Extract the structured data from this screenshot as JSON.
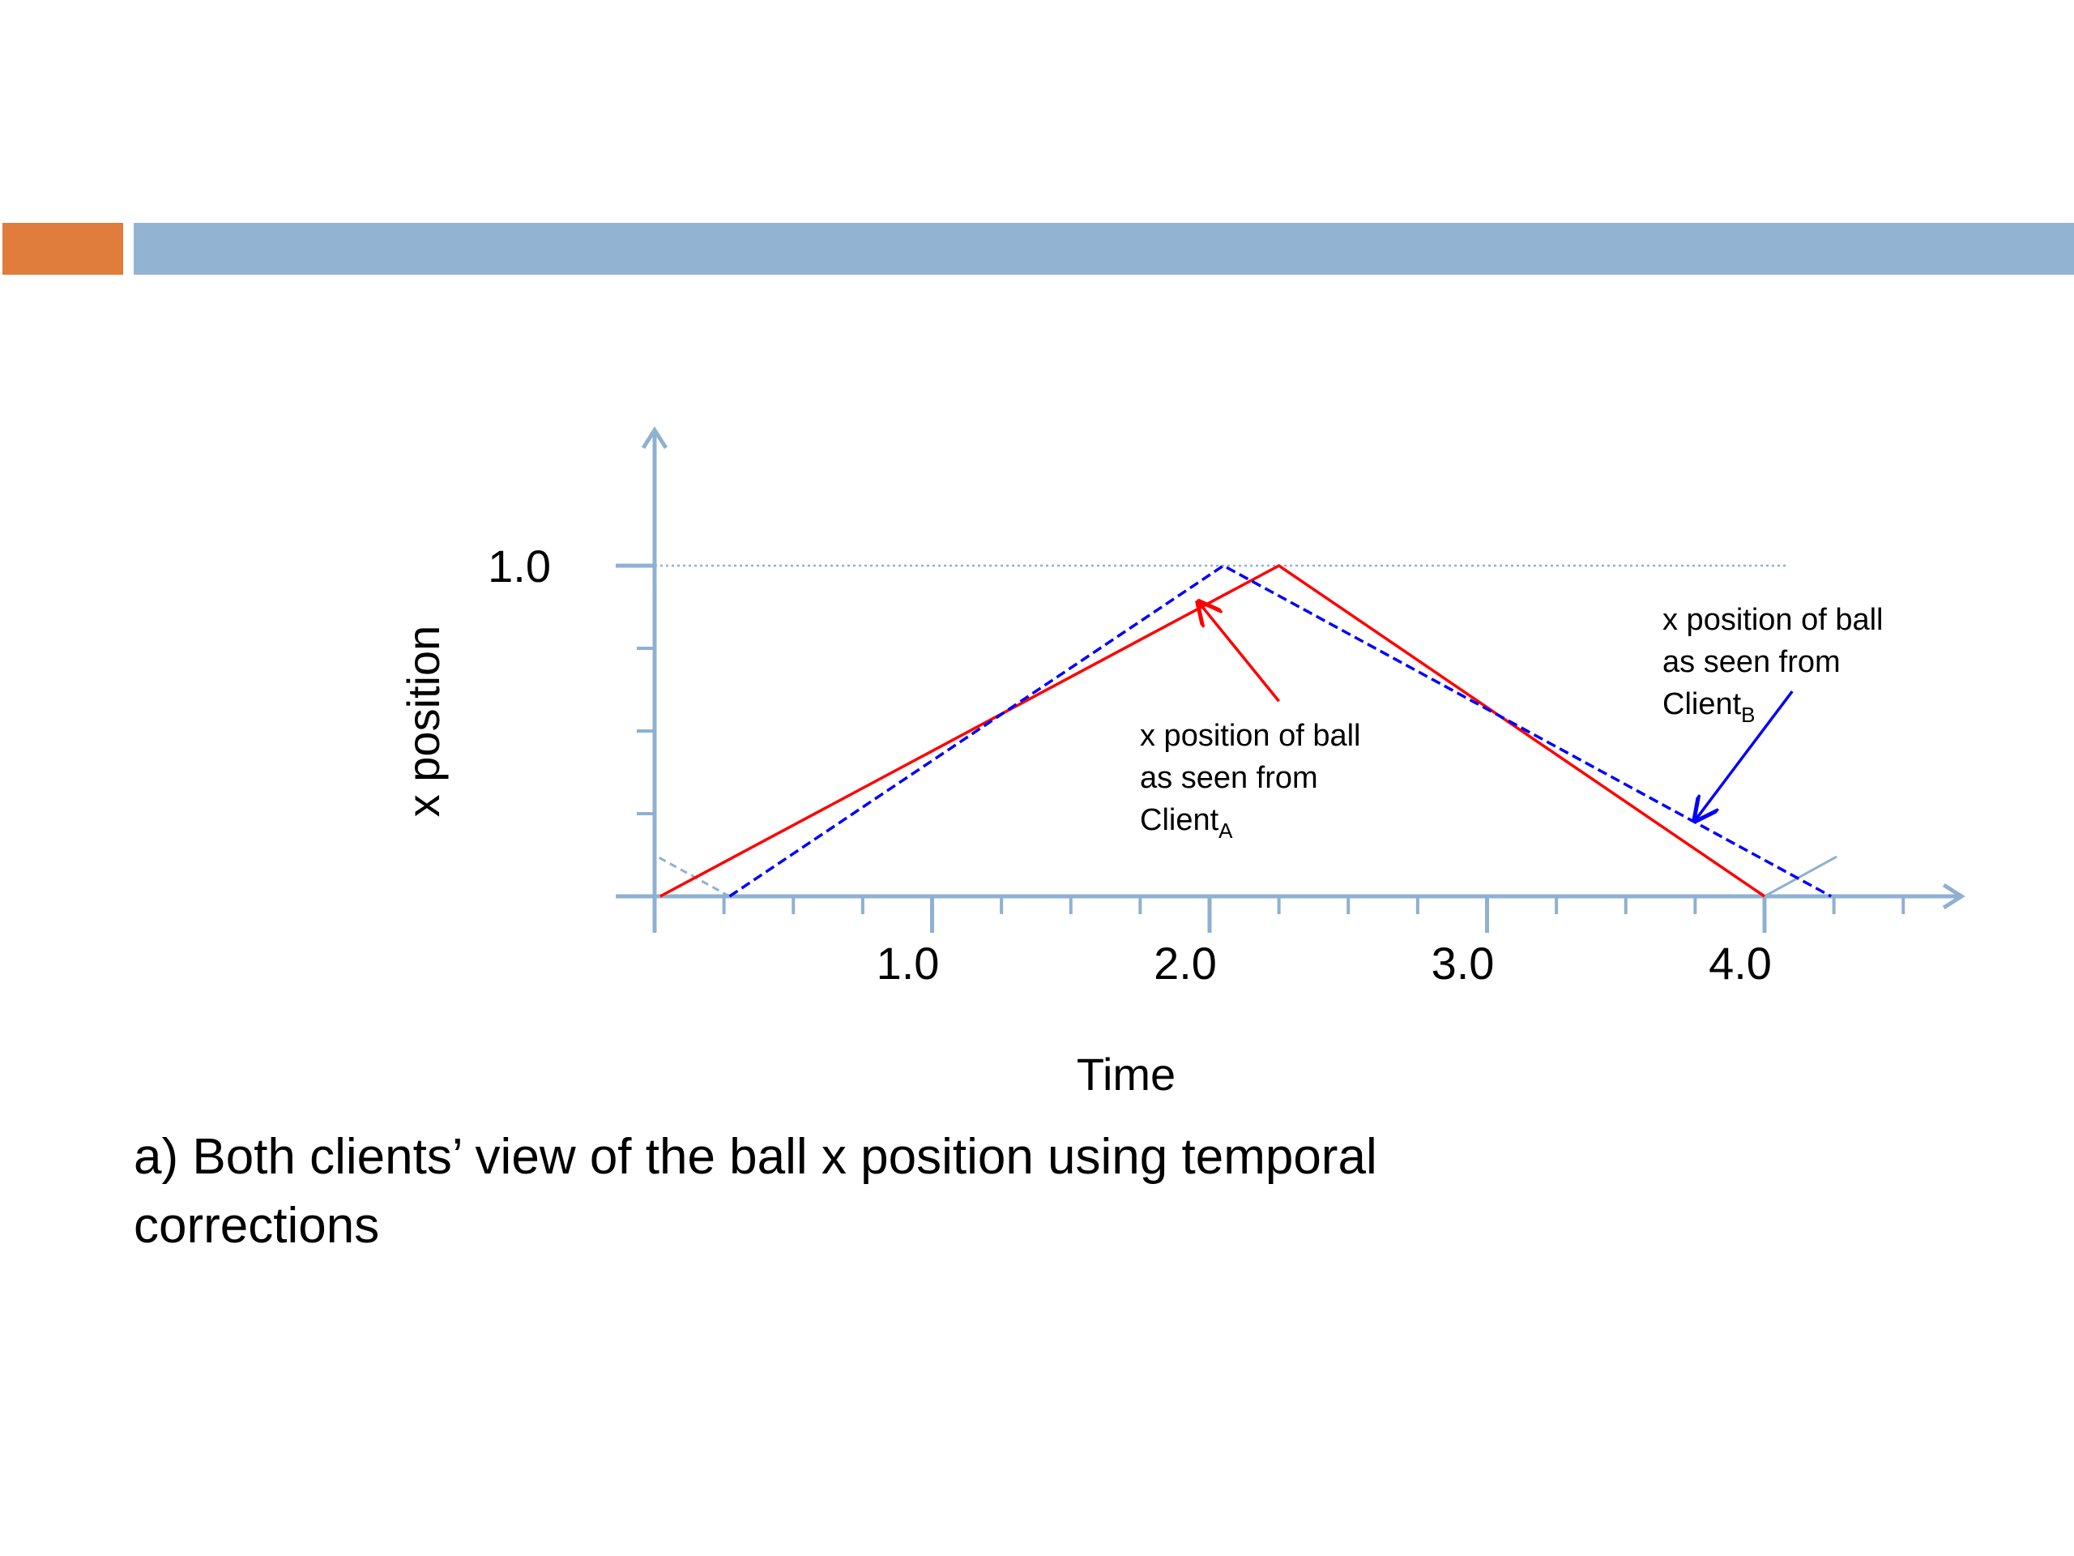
{
  "header": {
    "accent_color": "#E07C3C",
    "bar_color": "#93B3D3"
  },
  "chart_data": {
    "type": "line",
    "xlabel": "Time",
    "ylabel": "x position",
    "x_tick_labels": [
      "1.0",
      "2.0",
      "3.0",
      "4.0"
    ],
    "x_ticks": [
      1.0,
      2.0,
      3.0,
      4.0
    ],
    "y_tick_labels": [
      "1.0"
    ],
    "y_ticks": [
      1.0
    ],
    "xlim": [
      0,
      4.7
    ],
    "ylim": [
      0,
      1.2
    ],
    "reference_line": {
      "y": 1.0,
      "style": "dotted"
    },
    "axis_color": "#8FB1D1",
    "series": [
      {
        "color": "#FF0000",
        "style": "solid",
        "x": [
          0.02,
          2.25,
          4.0
        ],
        "y": [
          0.0,
          1.0,
          0.0
        ]
      },
      {
        "color": "#0000FF",
        "style": "dashed",
        "x": [
          0.27,
          2.05,
          4.24
        ],
        "y": [
          0.0,
          1.0,
          0.0
        ]
      }
    ],
    "annotations": [
      {
        "lines": [
          "x position of ball",
          "as seen from",
          "Client"
        ],
        "subscript": "A",
        "color": "#FF0000",
        "arrow_from": [
          2.25,
          0.59
        ],
        "arrow_to": [
          1.96,
          0.89
        ]
      },
      {
        "lines": [
          "x position of ball",
          "as seen from",
          "Client"
        ],
        "subscript": "B",
        "color": "#0000FF",
        "arrow_from": [
          4.1,
          0.62
        ],
        "arrow_to": [
          3.75,
          0.23
        ]
      }
    ]
  },
  "caption": {
    "line1": "a) Both clients’ view of the ball x position using temporal",
    "line2": "corrections"
  }
}
